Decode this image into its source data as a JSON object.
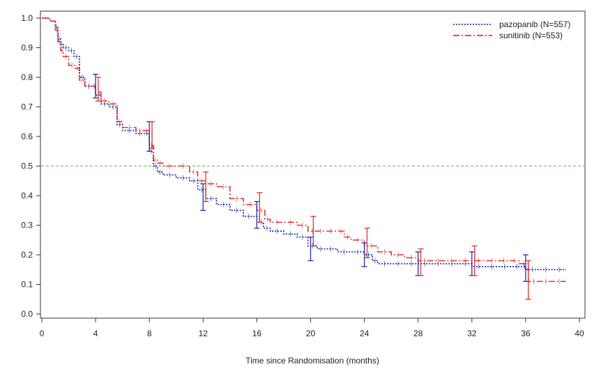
{
  "chart_data": {
    "type": "line",
    "title": "",
    "xlabel": "Time since Randomisation (months)",
    "ylabel": "",
    "xlim": [
      0,
      40
    ],
    "ylim": [
      0.0,
      1.0
    ],
    "xticks": [
      0,
      4,
      8,
      12,
      16,
      20,
      24,
      28,
      32,
      36,
      40
    ],
    "yticks": [
      0.0,
      0.1,
      0.2,
      0.3,
      0.4,
      0.5,
      0.6,
      0.7,
      0.8,
      0.9,
      1.0
    ],
    "xtick_labels": [
      "0",
      "4",
      "8",
      "12",
      "16",
      "20",
      "24",
      "28",
      "32",
      "36",
      "40"
    ],
    "ytick_labels": [
      "0.0",
      "0.1",
      "0.2",
      "0.3",
      "0.4",
      "0.5",
      "0.6",
      "0.7",
      "0.8",
      "0.9",
      "1.0"
    ],
    "reference_line": {
      "y": 0.5,
      "color": "#5cb85c",
      "style": "dashed"
    },
    "legend_position": "top-right",
    "series": [
      {
        "name": "pazopanib (N=557)",
        "color": "#1f2fb0",
        "style": "dotted",
        "x": [
          0,
          0.6,
          1.0,
          1.2,
          1.4,
          1.6,
          2.0,
          2.4,
          2.8,
          3.2,
          3.8,
          4.0,
          4.4,
          5.0,
          5.6,
          6.0,
          7.0,
          7.6,
          8.0,
          8.3,
          8.6,
          9.0,
          10.0,
          11.0,
          11.6,
          12.2,
          13.0,
          14.0,
          15.0,
          15.8,
          16.2,
          16.5,
          17.0,
          18.0,
          19.0,
          19.8,
          20.5,
          21.0,
          22.0,
          23.0,
          24.0,
          24.6,
          25.0,
          26.0,
          27.0,
          28.0,
          30.0,
          32.0,
          34.0,
          35.8,
          36.0,
          37.0,
          39.0
        ],
        "y": [
          1.0,
          0.99,
          0.97,
          0.93,
          0.91,
          0.9,
          0.89,
          0.87,
          0.8,
          0.77,
          0.77,
          0.74,
          0.71,
          0.7,
          0.64,
          0.62,
          0.61,
          0.61,
          0.55,
          0.5,
          0.48,
          0.47,
          0.46,
          0.45,
          0.42,
          0.39,
          0.37,
          0.35,
          0.33,
          0.33,
          0.31,
          0.29,
          0.28,
          0.27,
          0.26,
          0.23,
          0.22,
          0.22,
          0.21,
          0.21,
          0.2,
          0.18,
          0.17,
          0.17,
          0.17,
          0.17,
          0.17,
          0.16,
          0.16,
          0.16,
          0.15,
          0.15,
          0.15
        ]
      },
      {
        "name": "sunitinib (N=553)",
        "color": "#e03030",
        "style": "dash-dot",
        "x": [
          0,
          0.6,
          1.0,
          1.2,
          1.4,
          1.6,
          2.0,
          2.5,
          2.8,
          3.2,
          3.8,
          4.0,
          4.4,
          5.0,
          5.6,
          6.0,
          7.0,
          7.6,
          8.0,
          8.3,
          8.6,
          9.0,
          10.0,
          11.0,
          11.6,
          12.2,
          13.0,
          14.0,
          15.0,
          16.0,
          16.6,
          17.0,
          18.0,
          19.0,
          19.8,
          20.5,
          21.0,
          22.0,
          22.5,
          23.0,
          24.0,
          25.0,
          26.0,
          27.0,
          28.0,
          30.0,
          32.0,
          34.0,
          35.5,
          36.2,
          37.0,
          39.0
        ],
        "y": [
          1.0,
          0.99,
          0.96,
          0.92,
          0.89,
          0.87,
          0.84,
          0.83,
          0.79,
          0.77,
          0.77,
          0.75,
          0.72,
          0.71,
          0.65,
          0.63,
          0.62,
          0.62,
          0.57,
          0.52,
          0.51,
          0.5,
          0.5,
          0.48,
          0.45,
          0.44,
          0.43,
          0.39,
          0.37,
          0.35,
          0.32,
          0.31,
          0.31,
          0.3,
          0.28,
          0.28,
          0.28,
          0.28,
          0.26,
          0.25,
          0.23,
          0.21,
          0.2,
          0.19,
          0.18,
          0.18,
          0.18,
          0.18,
          0.17,
          0.11,
          0.11,
          0.11
        ]
      }
    ],
    "error_bars": [
      {
        "series": 0,
        "x": 4.0,
        "y": 0.77,
        "low": 0.73,
        "high": 0.81
      },
      {
        "series": 0,
        "x": 8.0,
        "y": 0.6,
        "low": 0.55,
        "high": 0.65
      },
      {
        "series": 0,
        "x": 12.0,
        "y": 0.39,
        "low": 0.35,
        "high": 0.44
      },
      {
        "series": 0,
        "x": 16.0,
        "y": 0.33,
        "low": 0.29,
        "high": 0.38
      },
      {
        "series": 0,
        "x": 20.0,
        "y": 0.22,
        "low": 0.18,
        "high": 0.26
      },
      {
        "series": 0,
        "x": 24.0,
        "y": 0.2,
        "low": 0.16,
        "high": 0.24
      },
      {
        "series": 0,
        "x": 28.0,
        "y": 0.17,
        "low": 0.13,
        "high": 0.21
      },
      {
        "series": 0,
        "x": 32.0,
        "y": 0.17,
        "low": 0.13,
        "high": 0.21
      },
      {
        "series": 0,
        "x": 36.0,
        "y": 0.15,
        "low": 0.11,
        "high": 0.2
      },
      {
        "series": 1,
        "x": 4.2,
        "y": 0.76,
        "low": 0.72,
        "high": 0.8
      },
      {
        "series": 1,
        "x": 8.2,
        "y": 0.6,
        "low": 0.56,
        "high": 0.65
      },
      {
        "series": 1,
        "x": 12.2,
        "y": 0.43,
        "low": 0.38,
        "high": 0.48
      },
      {
        "series": 1,
        "x": 16.2,
        "y": 0.36,
        "low": 0.31,
        "high": 0.41
      },
      {
        "series": 1,
        "x": 20.2,
        "y": 0.28,
        "low": 0.23,
        "high": 0.33
      },
      {
        "series": 1,
        "x": 24.2,
        "y": 0.24,
        "low": 0.19,
        "high": 0.29
      },
      {
        "series": 1,
        "x": 28.2,
        "y": 0.18,
        "low": 0.13,
        "high": 0.22
      },
      {
        "series": 1,
        "x": 32.2,
        "y": 0.18,
        "low": 0.13,
        "high": 0.23
      },
      {
        "series": 1,
        "x": 36.2,
        "y": 0.11,
        "low": 0.05,
        "high": 0.18
      }
    ]
  }
}
